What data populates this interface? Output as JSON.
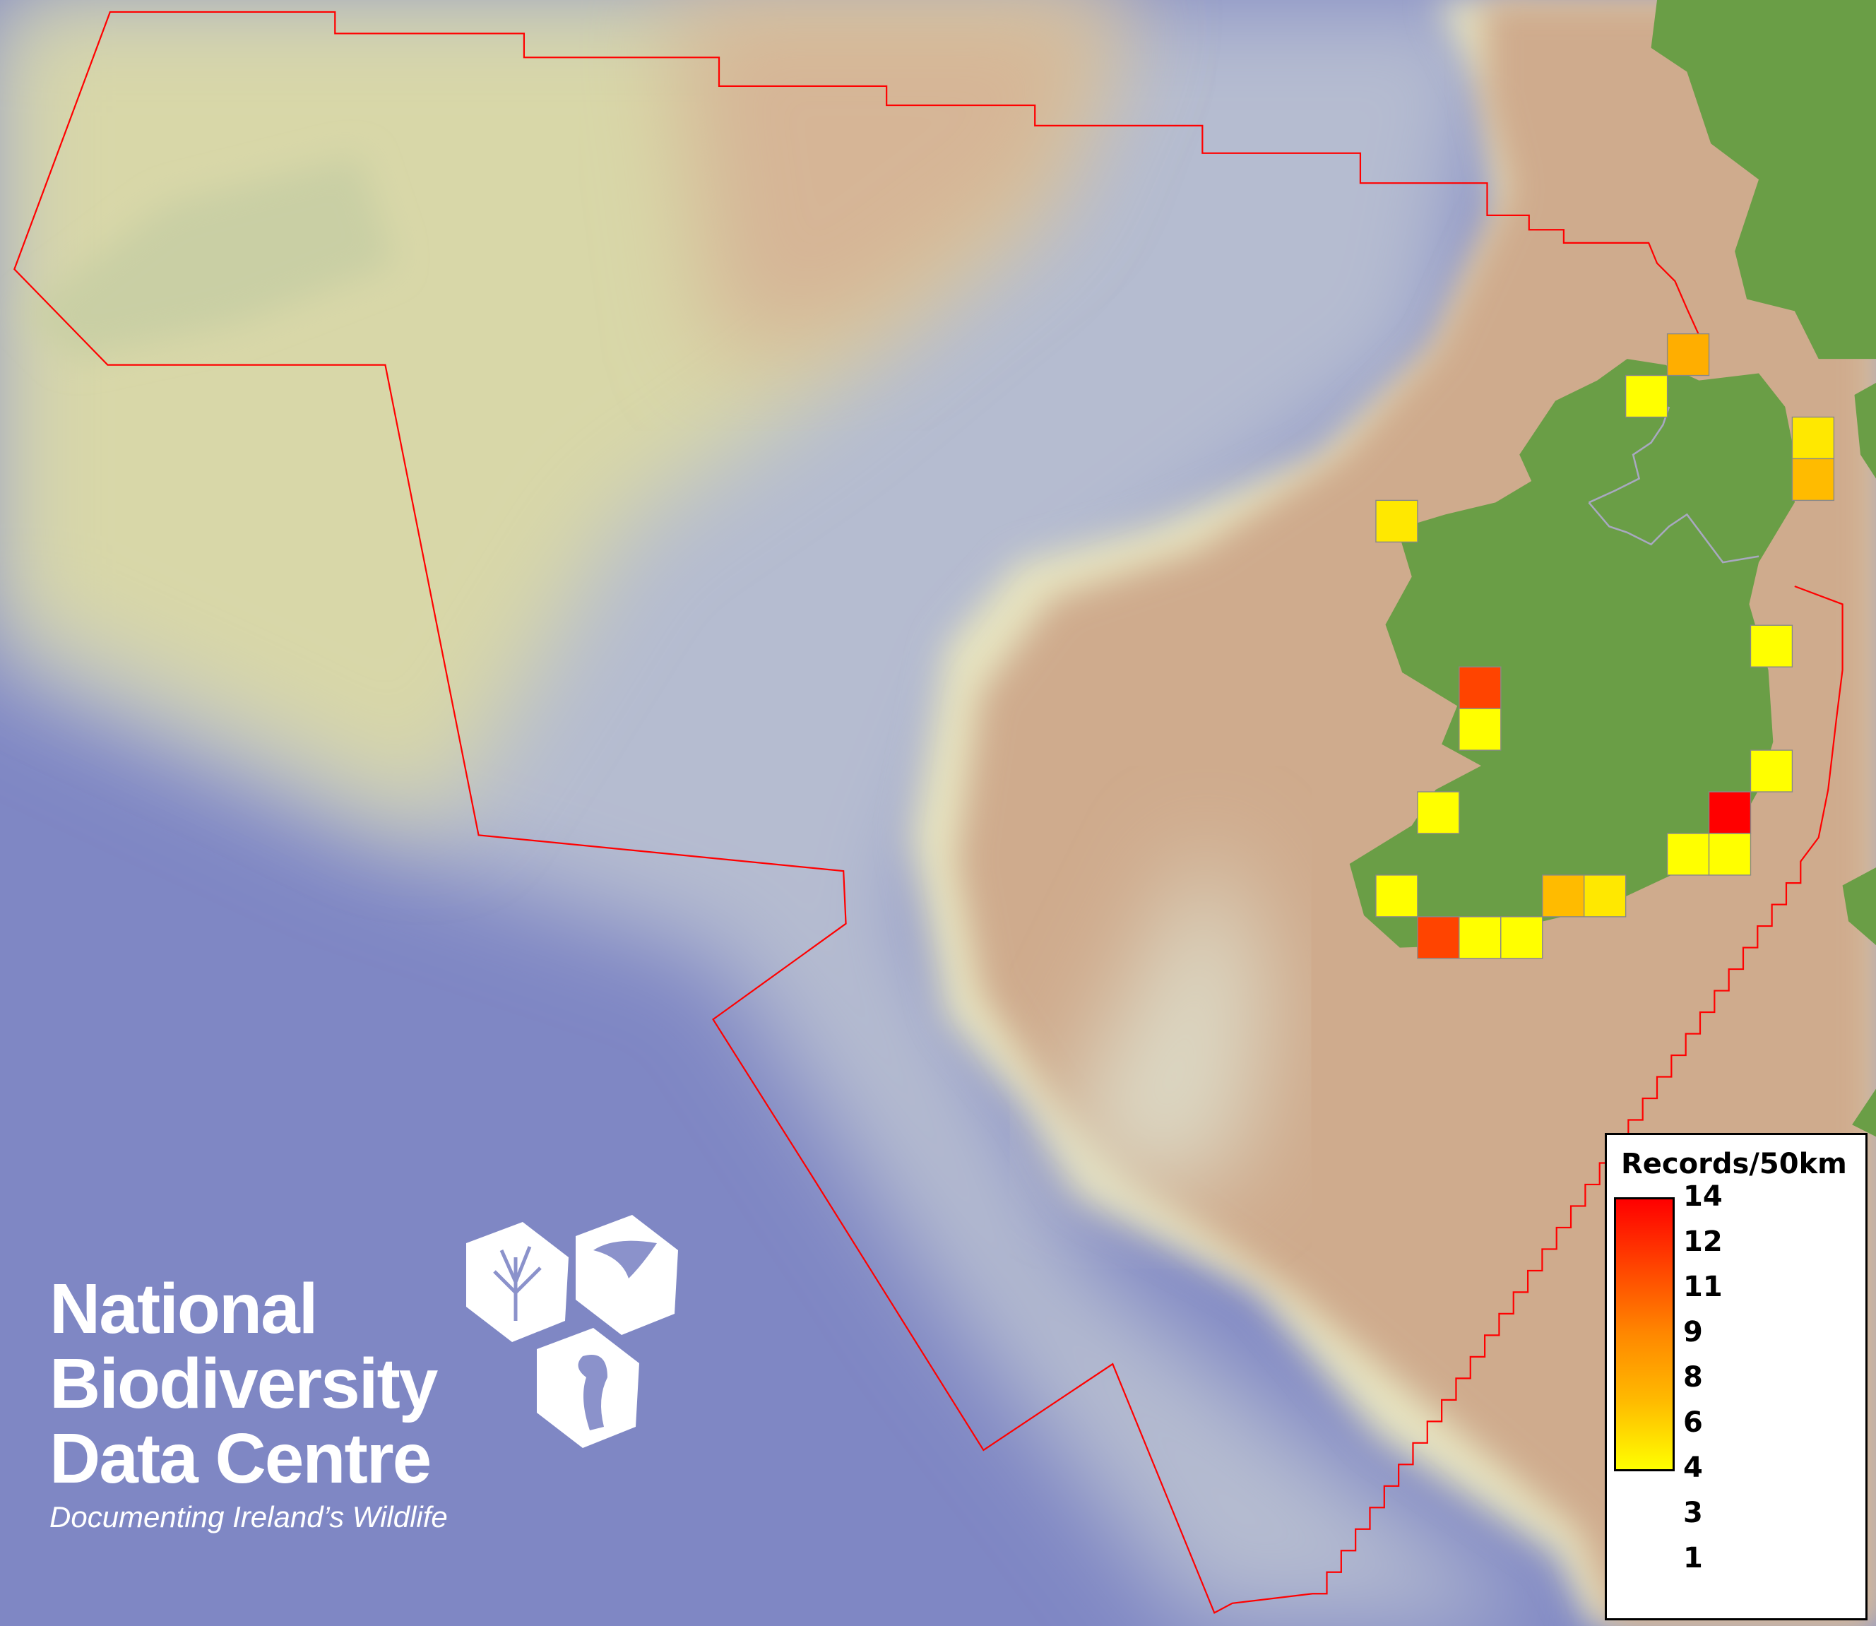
{
  "legend": {
    "title": "Records/50km",
    "ticks": [
      "14",
      "12",
      "11",
      "9",
      "8",
      "6",
      "4",
      "3",
      "1"
    ],
    "color_min": "#ffff00",
    "color_max": "#ff0000"
  },
  "records_per_cell": [
    5,
    1,
    2,
    4,
    2,
    1,
    11,
    1,
    1,
    14,
    1,
    1,
    1,
    1,
    4,
    2,
    11,
    1,
    1
  ],
  "colors": {
    "land": "#6a9e46",
    "deep_sea": "#7f87c4",
    "shelf_shallow": "#d8d7a8",
    "offshore_boundary": "#ff0000",
    "cell_border": "#888888"
  },
  "logo": {
    "line1": "National",
    "line2": "Biodiversity",
    "line3": "Data Centre",
    "tagline": "Documenting Ireland’s Wildlife"
  }
}
